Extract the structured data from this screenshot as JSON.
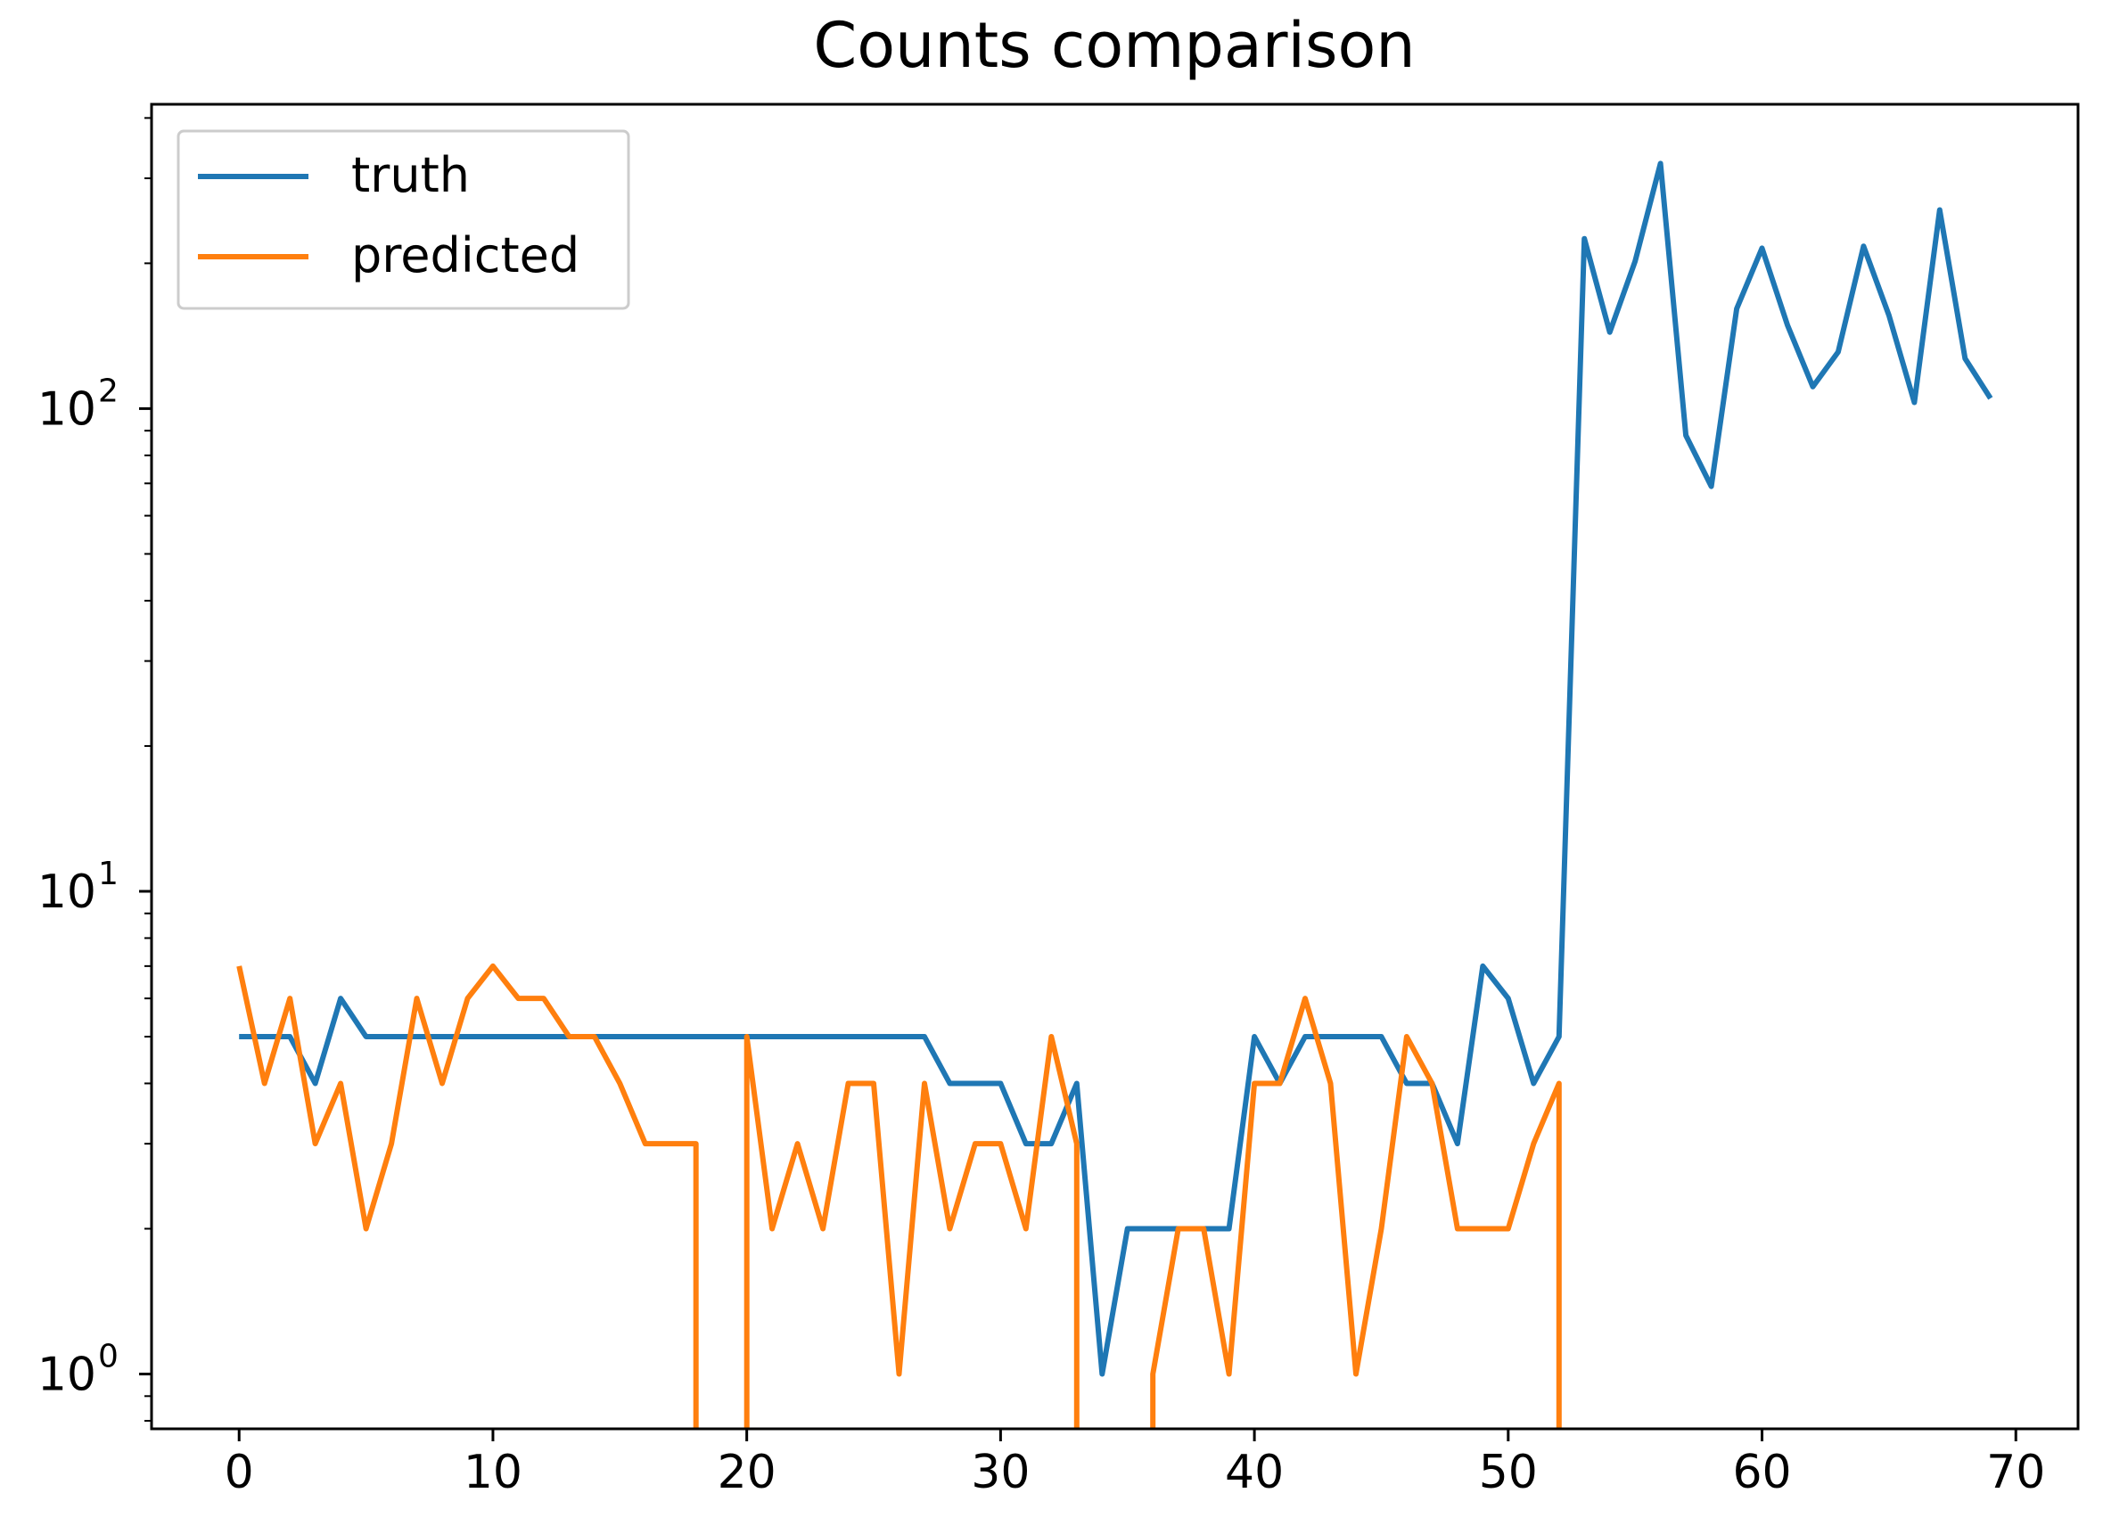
{
  "chart_data": {
    "type": "line",
    "title": "Counts comparison",
    "xlabel": "",
    "ylabel": "",
    "yscale": "log",
    "xlim": [
      -3.45,
      72.45
    ],
    "ylim": [
      0.77,
      427
    ],
    "grid": false,
    "legend_placement": "top-left",
    "x_ticks": [
      0,
      10,
      20,
      30,
      40,
      50,
      60,
      70
    ],
    "y_ticks": [
      {
        "value": 1,
        "label": "10",
        "exp": "0"
      },
      {
        "value": 10,
        "label": "10",
        "exp": "1"
      },
      {
        "value": 100,
        "label": "10",
        "exp": "2"
      }
    ],
    "series": [
      {
        "name": "truth",
        "color": "#1f77b4",
        "values": [
          5,
          5,
          5,
          4,
          6,
          5,
          5,
          5,
          5,
          5,
          5,
          5,
          5,
          5,
          5,
          5,
          5,
          5,
          5,
          5,
          5,
          5,
          5,
          5,
          5,
          5,
          5,
          5,
          4,
          4,
          4,
          3,
          3,
          4,
          1,
          2,
          2,
          2,
          2,
          2,
          5,
          4,
          5,
          5,
          5,
          5,
          4,
          4,
          3,
          7,
          6,
          4,
          5,
          225,
          144,
          202,
          322,
          88,
          69,
          161,
          215,
          149,
          111,
          131,
          217,
          156,
          103,
          258,
          127,
          105
        ]
      },
      {
        "name": "predicted",
        "color": "#ff7f0e",
        "values": [
          7,
          4,
          6,
          3,
          4,
          2,
          3,
          6,
          4,
          6,
          7,
          6,
          6,
          5,
          5,
          4,
          3,
          3,
          3,
          0,
          5,
          2,
          3,
          2,
          4,
          4,
          1,
          4,
          2,
          3,
          3,
          2,
          5,
          3,
          0,
          0,
          1,
          2,
          2,
          1,
          4,
          4,
          6,
          4,
          1,
          2,
          5,
          4,
          2,
          2,
          2,
          3,
          4,
          0,
          0,
          0,
          0,
          0,
          0,
          0,
          0,
          0,
          0,
          0,
          0,
          0,
          0,
          0,
          0,
          0
        ]
      }
    ]
  }
}
